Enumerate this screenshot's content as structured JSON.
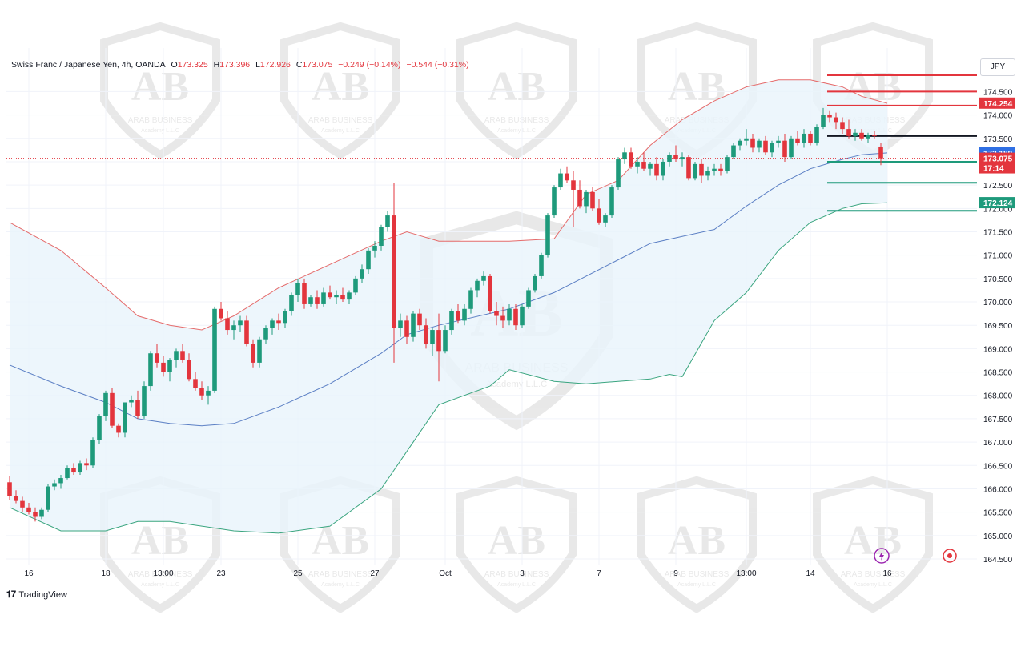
{
  "header": {
    "symbol": "Swiss Franc / Japanese Yen, 4h, OANDA",
    "open_label": "O",
    "open": "173.325",
    "high_label": "H",
    "high": "173.396",
    "low_label": "L",
    "low": "172.926",
    "close_label": "C",
    "close": "173.075",
    "change": "−0.249 (−0.14%)",
    "change2": "−0.544 (−0.31%)"
  },
  "currency": "JPY",
  "branding": {
    "tradingview": "TradingView",
    "watermark_text": "ARAB BUSINESS",
    "watermark_sub": "Academy L.L.C",
    "watermark_logo": "AB"
  },
  "colors": {
    "up": "#1e9a7b",
    "down": "#e3353d",
    "upper_band": "#e56b6b",
    "basis": "#5b7fc4",
    "lower_band": "#3aa57f",
    "band_fill": "#e9f4fb"
  },
  "chart_data": {
    "type": "candlestick",
    "symbol": "Swiss Franc / Japanese Yen",
    "timeframe": "4h",
    "y_ticks": [
      164.5,
      165.0,
      165.5,
      166.0,
      166.5,
      167.0,
      167.5,
      168.0,
      168.5,
      169.0,
      169.5,
      170.0,
      170.5,
      171.0,
      171.5,
      172.0,
      172.5,
      173.0,
      173.5,
      174.0,
      174.5
    ],
    "y_tick_labels": [
      "164.500",
      "165.000",
      "165.500",
      "166.000",
      "166.500",
      "167.000",
      "167.500",
      "168.000",
      "168.500",
      "169.000",
      "169.500",
      "170.000",
      "170.500",
      "171.000",
      "171.500",
      "172.000",
      "172.500",
      "173.000",
      "173.500",
      "174.000",
      "174.500"
    ],
    "x_tick_labels": [
      "16",
      "18",
      "13:00",
      "23",
      "25",
      "27",
      "Oct",
      "3",
      "7",
      "9",
      "13:00",
      "14",
      "16"
    ],
    "x_tick_index": [
      3,
      15,
      24,
      33,
      45,
      57,
      68,
      80,
      92,
      104,
      115,
      125,
      137
    ],
    "candles": [
      [
        166.14,
        166.28,
        165.75,
        165.85
      ],
      [
        165.85,
        165.97,
        165.69,
        165.74
      ],
      [
        165.74,
        165.83,
        165.51,
        165.6
      ],
      [
        165.6,
        165.7,
        165.45,
        165.5
      ],
      [
        165.5,
        165.6,
        165.3,
        165.4
      ],
      [
        165.4,
        165.6,
        165.35,
        165.55
      ],
      [
        165.55,
        166.1,
        165.5,
        166.05
      ],
      [
        166.05,
        166.2,
        165.97,
        166.12
      ],
      [
        166.12,
        166.3,
        166.0,
        166.23
      ],
      [
        166.23,
        166.5,
        166.2,
        166.45
      ],
      [
        166.45,
        166.55,
        166.3,
        166.35
      ],
      [
        166.35,
        166.6,
        166.3,
        166.55
      ],
      [
        166.55,
        166.65,
        166.4,
        166.5
      ],
      [
        166.5,
        167.1,
        166.45,
        167.05
      ],
      [
        167.05,
        167.6,
        166.95,
        167.55
      ],
      [
        167.55,
        168.1,
        167.45,
        168.05
      ],
      [
        168.05,
        168.15,
        167.3,
        167.35
      ],
      [
        167.35,
        167.4,
        167.1,
        167.2
      ],
      [
        167.2,
        167.85,
        167.1,
        167.85
      ],
      [
        167.85,
        168.0,
        167.75,
        167.9
      ],
      [
        167.9,
        168.1,
        167.5,
        167.55
      ],
      [
        167.55,
        168.3,
        167.5,
        168.2
      ],
      [
        168.2,
        168.95,
        168.1,
        168.9
      ],
      [
        168.9,
        169.1,
        168.6,
        168.7
      ],
      [
        168.7,
        168.85,
        168.4,
        168.5
      ],
      [
        168.5,
        168.8,
        168.3,
        168.75
      ],
      [
        168.75,
        169.0,
        168.6,
        168.95
      ],
      [
        168.95,
        169.1,
        168.7,
        168.75
      ],
      [
        168.75,
        168.9,
        168.3,
        168.35
      ],
      [
        168.35,
        168.5,
        168.1,
        168.15
      ],
      [
        168.15,
        168.3,
        167.9,
        168.0
      ],
      [
        168.0,
        168.2,
        167.8,
        168.1
      ],
      [
        168.1,
        169.9,
        168.05,
        169.85
      ],
      [
        169.85,
        170.0,
        169.6,
        169.65
      ],
      [
        169.65,
        169.8,
        169.3,
        169.4
      ],
      [
        169.4,
        169.6,
        169.2,
        169.5
      ],
      [
        169.5,
        169.7,
        169.35,
        169.6
      ],
      [
        169.6,
        169.7,
        169.05,
        169.1
      ],
      [
        169.1,
        169.2,
        168.6,
        168.7
      ],
      [
        168.7,
        169.25,
        168.6,
        169.2
      ],
      [
        169.2,
        169.5,
        169.1,
        169.45
      ],
      [
        169.45,
        169.65,
        169.3,
        169.6
      ],
      [
        169.6,
        169.75,
        169.4,
        169.55
      ],
      [
        169.55,
        169.85,
        169.45,
        169.8
      ],
      [
        169.8,
        170.2,
        169.7,
        170.15
      ],
      [
        170.15,
        170.5,
        170.0,
        170.4
      ],
      [
        170.4,
        170.5,
        169.85,
        169.95
      ],
      [
        169.95,
        170.15,
        169.9,
        170.1
      ],
      [
        170.1,
        170.25,
        169.85,
        169.95
      ],
      [
        169.95,
        170.3,
        169.9,
        170.2
      ],
      [
        170.2,
        170.35,
        170.05,
        170.1
      ],
      [
        170.1,
        170.25,
        169.95,
        170.15
      ],
      [
        170.15,
        170.3,
        170.0,
        170.05
      ],
      [
        170.05,
        170.25,
        169.95,
        170.2
      ],
      [
        170.2,
        170.55,
        170.15,
        170.5
      ],
      [
        170.5,
        170.8,
        170.4,
        170.7
      ],
      [
        170.7,
        171.15,
        170.6,
        171.1
      ],
      [
        171.1,
        171.3,
        170.95,
        171.2
      ],
      [
        171.2,
        171.65,
        171.1,
        171.6
      ],
      [
        171.6,
        171.95,
        171.5,
        171.85
      ],
      [
        171.85,
        172.55,
        168.7,
        169.45
      ],
      [
        169.45,
        169.75,
        169.25,
        169.6
      ],
      [
        169.6,
        169.7,
        169.1,
        169.25
      ],
      [
        169.25,
        169.8,
        169.15,
        169.75
      ],
      [
        169.75,
        169.85,
        169.4,
        169.5
      ],
      [
        169.5,
        169.65,
        169.0,
        169.1
      ],
      [
        169.1,
        169.45,
        168.85,
        169.4
      ],
      [
        169.4,
        169.75,
        168.3,
        168.95
      ],
      [
        168.95,
        169.5,
        168.9,
        169.4
      ],
      [
        169.4,
        169.85,
        169.3,
        169.8
      ],
      [
        169.8,
        169.95,
        169.55,
        169.6
      ],
      [
        169.6,
        169.95,
        169.5,
        169.85
      ],
      [
        169.85,
        170.3,
        169.75,
        170.25
      ],
      [
        170.25,
        170.5,
        170.1,
        170.45
      ],
      [
        170.45,
        170.65,
        170.35,
        170.55
      ],
      [
        170.55,
        170.6,
        169.75,
        169.8
      ],
      [
        169.8,
        170.0,
        169.5,
        169.7
      ],
      [
        169.7,
        169.9,
        169.45,
        169.6
      ],
      [
        169.6,
        169.95,
        169.5,
        169.85
      ],
      [
        169.85,
        169.95,
        169.4,
        169.5
      ],
      [
        169.5,
        169.95,
        169.45,
        169.9
      ],
      [
        169.9,
        170.3,
        169.85,
        170.25
      ],
      [
        170.25,
        170.6,
        170.2,
        170.55
      ],
      [
        170.55,
        171.05,
        170.5,
        171.0
      ],
      [
        171.0,
        171.9,
        170.95,
        171.85
      ],
      [
        171.85,
        172.5,
        171.8,
        172.45
      ],
      [
        172.45,
        172.85,
        172.4,
        172.75
      ],
      [
        172.75,
        172.9,
        172.55,
        172.6
      ],
      [
        172.6,
        172.8,
        171.6,
        172.4
      ],
      [
        172.4,
        172.6,
        172.0,
        172.05
      ],
      [
        172.05,
        172.4,
        171.9,
        172.35
      ],
      [
        172.35,
        172.45,
        171.95,
        172.0
      ],
      [
        172.0,
        172.2,
        171.65,
        171.7
      ],
      [
        171.7,
        171.9,
        171.6,
        171.85
      ],
      [
        171.85,
        172.5,
        171.8,
        172.45
      ],
      [
        172.45,
        173.1,
        172.4,
        173.05
      ],
      [
        173.05,
        173.3,
        172.95,
        173.2
      ],
      [
        173.2,
        173.3,
        172.85,
        172.9
      ],
      [
        172.9,
        173.1,
        172.75,
        173.0
      ],
      [
        173.0,
        173.2,
        172.8,
        172.85
      ],
      [
        172.85,
        173.0,
        172.7,
        172.95
      ],
      [
        172.95,
        173.1,
        172.6,
        172.7
      ],
      [
        172.7,
        173.05,
        172.6,
        173.0
      ],
      [
        173.0,
        173.2,
        172.9,
        173.15
      ],
      [
        173.15,
        173.35,
        173.0,
        173.05
      ],
      [
        173.05,
        173.2,
        172.9,
        173.1
      ],
      [
        173.1,
        173.15,
        172.6,
        172.65
      ],
      [
        172.65,
        173.0,
        172.6,
        172.95
      ],
      [
        172.95,
        173.05,
        172.55,
        172.7
      ],
      [
        172.7,
        172.9,
        172.6,
        172.8
      ],
      [
        172.8,
        172.95,
        172.7,
        172.85
      ],
      [
        172.85,
        172.95,
        172.7,
        172.8
      ],
      [
        172.8,
        173.15,
        172.75,
        173.1
      ],
      [
        173.1,
        173.4,
        173.05,
        173.35
      ],
      [
        173.35,
        173.5,
        173.25,
        173.45
      ],
      [
        173.45,
        173.7,
        173.35,
        173.5
      ],
      [
        173.5,
        173.6,
        173.2,
        173.3
      ],
      [
        173.3,
        173.5,
        173.2,
        173.45
      ],
      [
        173.45,
        173.55,
        173.15,
        173.2
      ],
      [
        173.2,
        173.45,
        173.1,
        173.4
      ],
      [
        173.4,
        173.55,
        173.3,
        173.45
      ],
      [
        173.45,
        173.6,
        173.0,
        173.1
      ],
      [
        173.1,
        173.55,
        173.05,
        173.5
      ],
      [
        173.5,
        173.65,
        173.35,
        173.4
      ],
      [
        173.4,
        173.7,
        173.3,
        173.6
      ],
      [
        173.6,
        173.65,
        173.35,
        173.4
      ],
      [
        173.4,
        173.8,
        173.35,
        173.75
      ],
      [
        173.75,
        174.15,
        173.7,
        174.0
      ],
      [
        174.0,
        174.1,
        173.85,
        173.95
      ],
      [
        173.95,
        174.05,
        173.7,
        173.85
      ],
      [
        173.85,
        173.95,
        173.6,
        173.7
      ],
      [
        173.7,
        173.9,
        173.5,
        173.55
      ],
      [
        173.55,
        173.7,
        173.45,
        173.62
      ],
      [
        173.62,
        173.7,
        173.45,
        173.5
      ],
      [
        173.5,
        173.62,
        173.4,
        173.58
      ],
      [
        173.58,
        173.65,
        173.5,
        173.55
      ],
      [
        173.325,
        173.396,
        172.926,
        173.075
      ]
    ],
    "bollinger": {
      "basis_label_value": 173.189,
      "upper_label_value": 174.254,
      "lower_label_value": 172.124,
      "upper_points": [
        [
          0,
          171.7
        ],
        [
          8,
          171.1
        ],
        [
          15,
          170.3
        ],
        [
          20,
          169.7
        ],
        [
          25,
          169.5
        ],
        [
          30,
          169.4
        ],
        [
          35,
          169.7
        ],
        [
          42,
          170.3
        ],
        [
          50,
          170.8
        ],
        [
          58,
          171.3
        ],
        [
          62,
          171.5
        ],
        [
          67,
          171.3
        ],
        [
          78,
          171.3
        ],
        [
          85,
          171.35
        ],
        [
          90,
          172.3
        ],
        [
          95,
          172.6
        ],
        [
          100,
          173.35
        ],
        [
          105,
          173.9
        ],
        [
          110,
          174.3
        ],
        [
          115,
          174.6
        ],
        [
          120,
          174.75
        ],
        [
          125,
          174.75
        ],
        [
          130,
          174.6
        ],
        [
          133,
          174.4
        ],
        [
          137,
          174.25
        ]
      ],
      "basis_points": [
        [
          0,
          168.65
        ],
        [
          8,
          168.2
        ],
        [
          15,
          167.85
        ],
        [
          20,
          167.5
        ],
        [
          25,
          167.4
        ],
        [
          30,
          167.35
        ],
        [
          35,
          167.4
        ],
        [
          42,
          167.75
        ],
        [
          50,
          168.25
        ],
        [
          58,
          168.9
        ],
        [
          62,
          169.3
        ],
        [
          67,
          169.5
        ],
        [
          78,
          169.85
        ],
        [
          85,
          170.2
        ],
        [
          90,
          170.55
        ],
        [
          95,
          170.9
        ],
        [
          100,
          171.25
        ],
        [
          105,
          171.4
        ],
        [
          110,
          171.55
        ],
        [
          115,
          172.05
        ],
        [
          120,
          172.5
        ],
        [
          125,
          172.85
        ],
        [
          130,
          173.05
        ],
        [
          133,
          173.15
        ],
        [
          137,
          173.19
        ]
      ],
      "lower_points": [
        [
          0,
          165.6
        ],
        [
          8,
          165.1
        ],
        [
          15,
          165.1
        ],
        [
          20,
          165.3
        ],
        [
          25,
          165.3
        ],
        [
          30,
          165.2
        ],
        [
          35,
          165.1
        ],
        [
          42,
          165.05
        ],
        [
          50,
          165.2
        ],
        [
          58,
          166.0
        ],
        [
          62,
          166.8
        ],
        [
          67,
          167.8
        ],
        [
          75,
          168.2
        ],
        [
          78,
          168.55
        ],
        [
          85,
          168.3
        ],
        [
          90,
          168.25
        ],
        [
          95,
          168.3
        ],
        [
          100,
          168.35
        ],
        [
          103,
          168.45
        ],
        [
          105,
          168.4
        ],
        [
          110,
          169.6
        ],
        [
          115,
          170.2
        ],
        [
          120,
          171.1
        ],
        [
          125,
          171.7
        ],
        [
          130,
          172.0
        ],
        [
          133,
          172.1
        ],
        [
          137,
          172.12
        ]
      ]
    },
    "levels": [
      {
        "value": 174.85,
        "color": "#e3353d",
        "label": ""
      },
      {
        "value": 174.5,
        "color": "#e3353d",
        "label": ""
      },
      {
        "value": 174.2,
        "color": "#e3353d",
        "label": ""
      },
      {
        "value": 173.55,
        "color": "#131722",
        "label": ""
      },
      {
        "value": 173.0,
        "color": "#1e9a7b",
        "label": ""
      },
      {
        "value": 172.55,
        "color": "#1e9a7b",
        "label": ""
      },
      {
        "value": 171.95,
        "color": "#1e9a7b",
        "label": ""
      }
    ],
    "price_labels": [
      {
        "text": "174.254",
        "value": 174.254,
        "bg": "#e3353d"
      },
      {
        "text": "173.189",
        "value": 173.189,
        "bg": "#2f6fe4"
      },
      {
        "text": "173.075",
        "value": 173.075,
        "bg": "#e3353d"
      },
      {
        "text": "17:14",
        "value": 172.87,
        "bg": "#e3353d"
      },
      {
        "text": "172.124",
        "value": 172.124,
        "bg": "#1e9a7b"
      }
    ],
    "last_price": 173.075
  }
}
